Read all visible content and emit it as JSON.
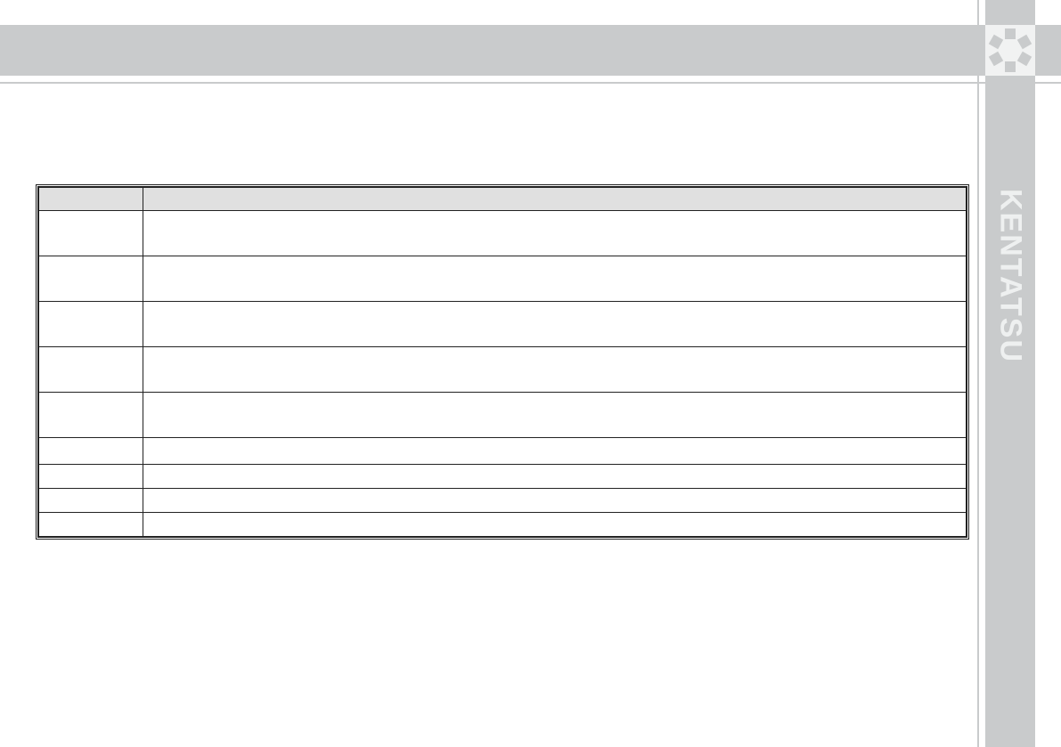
{
  "header": {
    "brand": "KENTATSU",
    "logo_icon": "kentatsu-flower-logo"
  },
  "colors": {
    "band": "#c9cbcc",
    "table_header": "#e0e0e0",
    "border": "#222222"
  },
  "table": {
    "headers": [
      "",
      ""
    ],
    "rows": [
      [
        "",
        ""
      ],
      [
        "",
        ""
      ],
      [
        "",
        ""
      ],
      [
        "",
        ""
      ],
      [
        "",
        ""
      ],
      [
        "",
        ""
      ],
      [
        "",
        ""
      ],
      [
        "",
        ""
      ],
      [
        "",
        ""
      ]
    ]
  }
}
